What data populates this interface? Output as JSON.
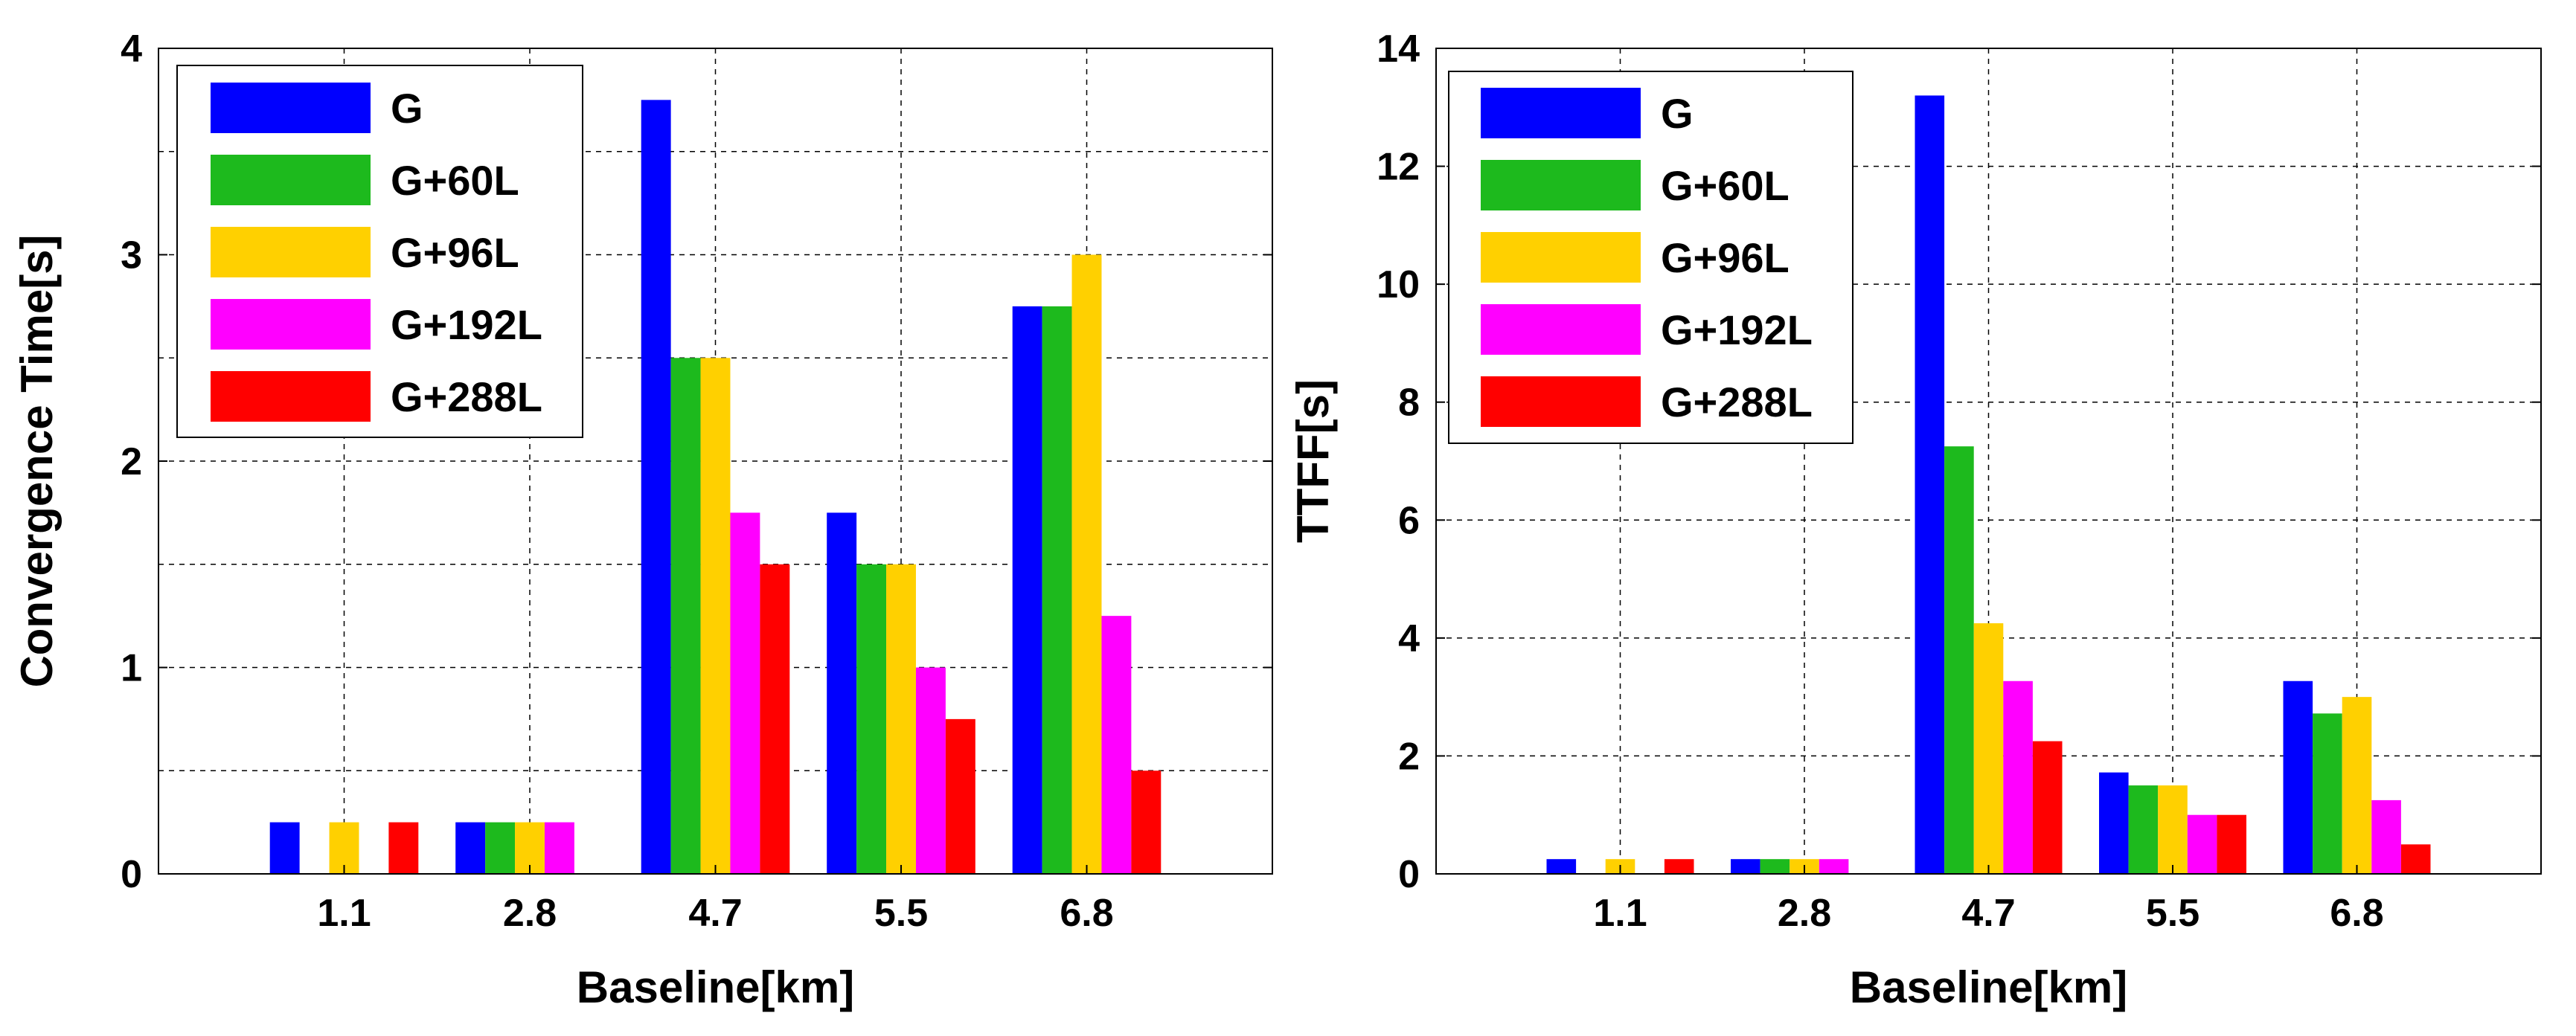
{
  "chart_data": [
    {
      "type": "bar",
      "title": "",
      "xlabel": "Baseline[km]",
      "ylabel": "Convergence Time[s]",
      "categories": [
        "1.1",
        "2.8",
        "4.7",
        "5.5",
        "6.8"
      ],
      "ylim": [
        0,
        4
      ],
      "yticks": [
        "0",
        "1",
        "2",
        "3",
        "4"
      ],
      "grid": true,
      "legend_position": "top-left",
      "series": [
        {
          "name": "G",
          "color": "#0000ff",
          "values": [
            0.25,
            0.25,
            3.75,
            1.75,
            2.75
          ]
        },
        {
          "name": "G+60L",
          "color": "#1dba1d",
          "values": [
            0,
            0.25,
            2.5,
            1.5,
            2.75
          ]
        },
        {
          "name": "G+96L",
          "color": "#ffd000",
          "values": [
            0.25,
            0.25,
            2.5,
            1.5,
            3.0
          ]
        },
        {
          "name": "G+192L",
          "color": "#ff00ff",
          "values": [
            0,
            0.25,
            1.75,
            1.0,
            1.25
          ]
        },
        {
          "name": "G+288L",
          "color": "#ff0000",
          "values": [
            0.25,
            0,
            1.5,
            0.75,
            0.5
          ]
        }
      ]
    },
    {
      "type": "bar",
      "title": "",
      "xlabel": "Baseline[km]",
      "ylabel": "TTFF[s]",
      "categories": [
        "1.1",
        "2.8",
        "4.7",
        "5.5",
        "6.8"
      ],
      "ylim": [
        0,
        14
      ],
      "yticks": [
        "0",
        "2",
        "4",
        "6",
        "8",
        "10",
        "12",
        "14"
      ],
      "grid": true,
      "legend_position": "top-left",
      "series": [
        {
          "name": "G",
          "color": "#0000ff",
          "values": [
            0.25,
            0.25,
            13.2,
            1.72,
            3.27
          ]
        },
        {
          "name": "G+60L",
          "color": "#1dba1d",
          "values": [
            0,
            0.25,
            7.25,
            1.5,
            2.72
          ]
        },
        {
          "name": "G+96L",
          "color": "#ffd000",
          "values": [
            0.25,
            0.25,
            4.25,
            1.5,
            3.0
          ]
        },
        {
          "name": "G+192L",
          "color": "#ff00ff",
          "values": [
            0,
            0.25,
            3.27,
            1.0,
            1.25
          ]
        },
        {
          "name": "G+288L",
          "color": "#ff0000",
          "values": [
            0.25,
            0,
            2.25,
            1.0,
            0.5
          ]
        }
      ]
    }
  ]
}
